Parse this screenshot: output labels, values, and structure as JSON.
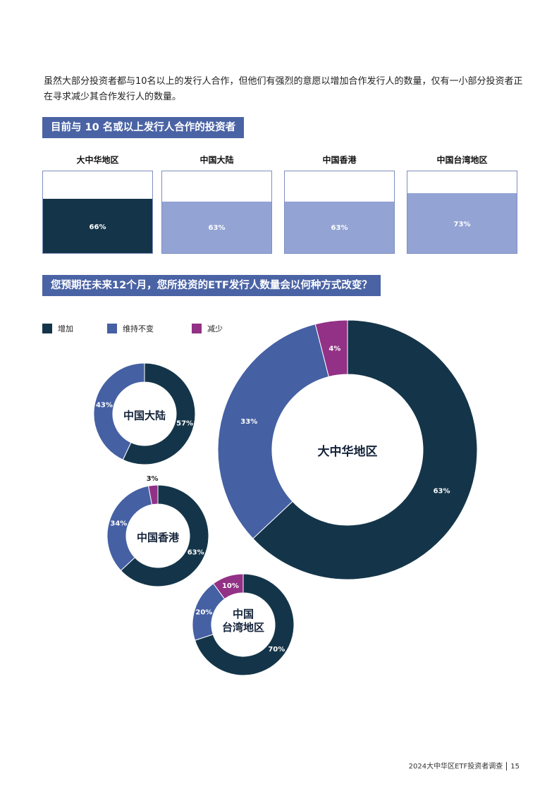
{
  "intro": "虽然大部分投资者都与10名以上的发行人合作，但他们有强烈的意愿以增加合作发行人的数量，仅有一小部分投资者正在寻求减少其合作发行人的数量。",
  "colors": {
    "increase": "#143549",
    "unchanged": "#4560a3",
    "decrease": "#923186",
    "bar_light": "#93a3d4",
    "title_bg": "#4a63a5"
  },
  "section1": {
    "title": "目前与 10 名或以上发行人合作的投资者",
    "bars": [
      {
        "label": "大中华地区",
        "value": 66,
        "value_label": "66%",
        "color": "#143549"
      },
      {
        "label": "中国大陆",
        "value": 63,
        "value_label": "63%",
        "color": "#93a3d4"
      },
      {
        "label": "中国香港",
        "value": 63,
        "value_label": "63%",
        "color": "#93a3d4"
      },
      {
        "label": "中国台湾地区",
        "value": 73,
        "value_label": "73%",
        "color": "#93a3d4"
      }
    ]
  },
  "section2": {
    "title": "您预期在未来12个月，您所投资的ETF发行人数量会以何种方式改变？",
    "legend": [
      {
        "label": "增加",
        "color": "#143549"
      },
      {
        "label": "维持不变",
        "color": "#4560a3"
      },
      {
        "label": "减少",
        "color": "#923186"
      }
    ]
  },
  "chart_data": [
    {
      "type": "pie",
      "title": "大中华地区",
      "categories": [
        "增加",
        "维持不变",
        "减少"
      ],
      "values": [
        63,
        33,
        4
      ],
      "labels": [
        "63%",
        "33%",
        "4%"
      ]
    },
    {
      "type": "pie",
      "title": "中国大陆",
      "categories": [
        "增加",
        "维持不变",
        "减少"
      ],
      "values": [
        57,
        43,
        0
      ],
      "labels": [
        "57%",
        "43%",
        ""
      ]
    },
    {
      "type": "pie",
      "title": "中国香港",
      "categories": [
        "增加",
        "维持不变",
        "减少"
      ],
      "values": [
        63,
        34,
        3
      ],
      "labels": [
        "63%",
        "34%",
        "3%"
      ]
    },
    {
      "type": "pie",
      "title": "中国\n台湾地区",
      "categories": [
        "增加",
        "维持不变",
        "减少"
      ],
      "values": [
        70,
        20,
        10
      ],
      "labels": [
        "70%",
        "20%",
        "10%"
      ]
    }
  ],
  "footer": {
    "report": "2024大中华区ETF投资者调查",
    "page": "15"
  }
}
